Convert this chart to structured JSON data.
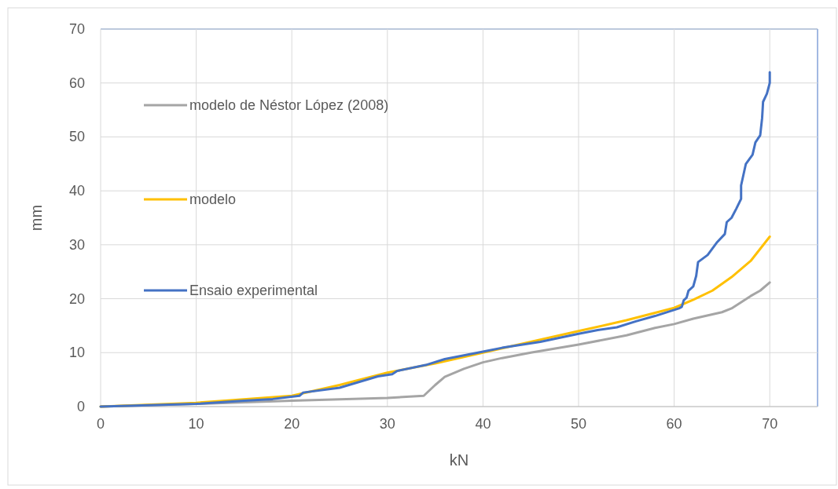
{
  "chart_data": {
    "type": "line",
    "xlabel": "kN",
    "ylabel": "mm",
    "xlim": [
      0,
      75
    ],
    "ylim": [
      0,
      70
    ],
    "xticks": [
      0,
      10,
      20,
      30,
      40,
      50,
      60,
      70
    ],
    "yticks": [
      0,
      10,
      20,
      30,
      40,
      50,
      60,
      70
    ],
    "grid": true,
    "legend": "left",
    "line_style": "solid",
    "marker": "none",
    "series": [
      {
        "name": "modelo de Néstor López (2008)",
        "color": "#a5a5a5",
        "x": [
          0,
          10,
          20,
          30,
          33.8,
          35,
          36,
          38,
          40,
          42,
          45,
          50,
          55,
          58,
          60,
          62,
          65,
          66,
          68,
          69,
          70
        ],
        "values": [
          0,
          0.5,
          1.1,
          1.6,
          2,
          4,
          5.5,
          7,
          8.2,
          9,
          10,
          11.5,
          13.2,
          14.6,
          15.3,
          16.3,
          17.5,
          18.2,
          20.5,
          21.5,
          23
        ]
      },
      {
        "name": "modelo",
        "color": "#ffc000",
        "x": [
          0,
          10,
          20,
          25,
          30,
          35,
          45,
          50,
          55,
          60,
          62,
          64,
          66,
          68,
          70
        ],
        "values": [
          0,
          0.7,
          2,
          4,
          6.3,
          8,
          12,
          14,
          16,
          18.3,
          19.8,
          21.5,
          24,
          27,
          31.5
        ]
      },
      {
        "name": "Ensaio experimental",
        "color": "#4472c4",
        "x": [
          0,
          10,
          15,
          18,
          20.8,
          21.2,
          25,
          29,
          30.5,
          31,
          34,
          36,
          40,
          42,
          46,
          50,
          52,
          54,
          56,
          58,
          60.5,
          60.8,
          61,
          61.3,
          61.5,
          62,
          62.3,
          62.5,
          63.5,
          64.5,
          65.3,
          65.5,
          66,
          66.5,
          67,
          67,
          67.5,
          68.2,
          68.5,
          69,
          69.2,
          69.3,
          69.7,
          70,
          70
        ],
        "values": [
          0,
          0.5,
          1.1,
          1.4,
          2,
          2.6,
          3.5,
          5.6,
          6,
          6.6,
          7.7,
          8.8,
          10.2,
          10.9,
          12,
          13.5,
          14.2,
          14.7,
          15.8,
          16.8,
          18.2,
          18.5,
          19.7,
          20.2,
          21.5,
          22.3,
          24.2,
          26.8,
          28.1,
          30.5,
          32,
          34.2,
          35,
          36.7,
          38.5,
          41,
          45,
          46.7,
          49,
          50.3,
          53.5,
          56.5,
          58,
          60,
          62
        ]
      }
    ]
  }
}
